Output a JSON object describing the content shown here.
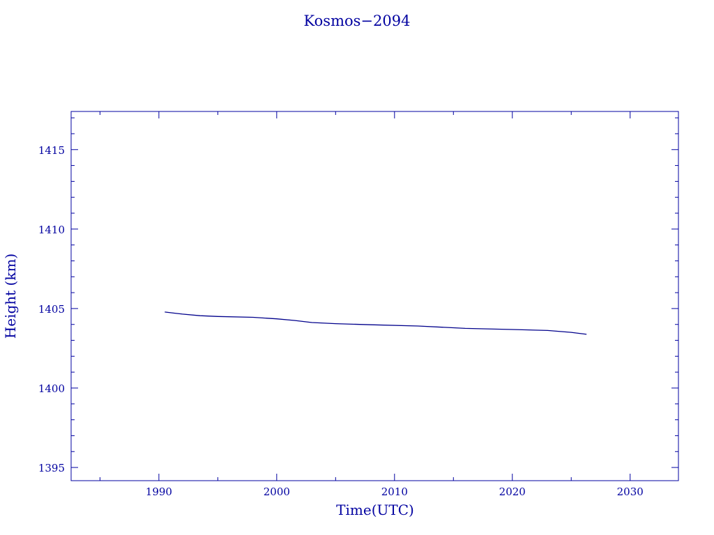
{
  "chart_data": {
    "type": "line",
    "title": "Kosmos−2094",
    "xlabel": "Time(UTC)",
    "ylabel": "Height (km)",
    "xlim": [
      1982.55,
      2034.1
    ],
    "ylim": [
      1394.17,
      1417.4
    ],
    "xticks": [
      1990,
      2000,
      2010,
      2020,
      2030
    ],
    "yticks": [
      1395,
      1400,
      1405,
      1410,
      1415
    ],
    "grid": false,
    "color": "#00008b",
    "text_color": "#0000a0",
    "series": [
      {
        "x": [
          1990.5,
          1992,
          1993.5,
          1995,
          1998,
          2000,
          2001.5,
          2003,
          2005,
          2008,
          2012,
          2016,
          2020,
          2023,
          2025,
          2026.3
        ],
        "y": [
          1404.78,
          1404.65,
          1404.55,
          1404.5,
          1404.45,
          1404.35,
          1404.25,
          1404.12,
          1404.05,
          1403.98,
          1403.9,
          1403.75,
          1403.68,
          1403.62,
          1403.5,
          1403.38
        ]
      }
    ]
  }
}
